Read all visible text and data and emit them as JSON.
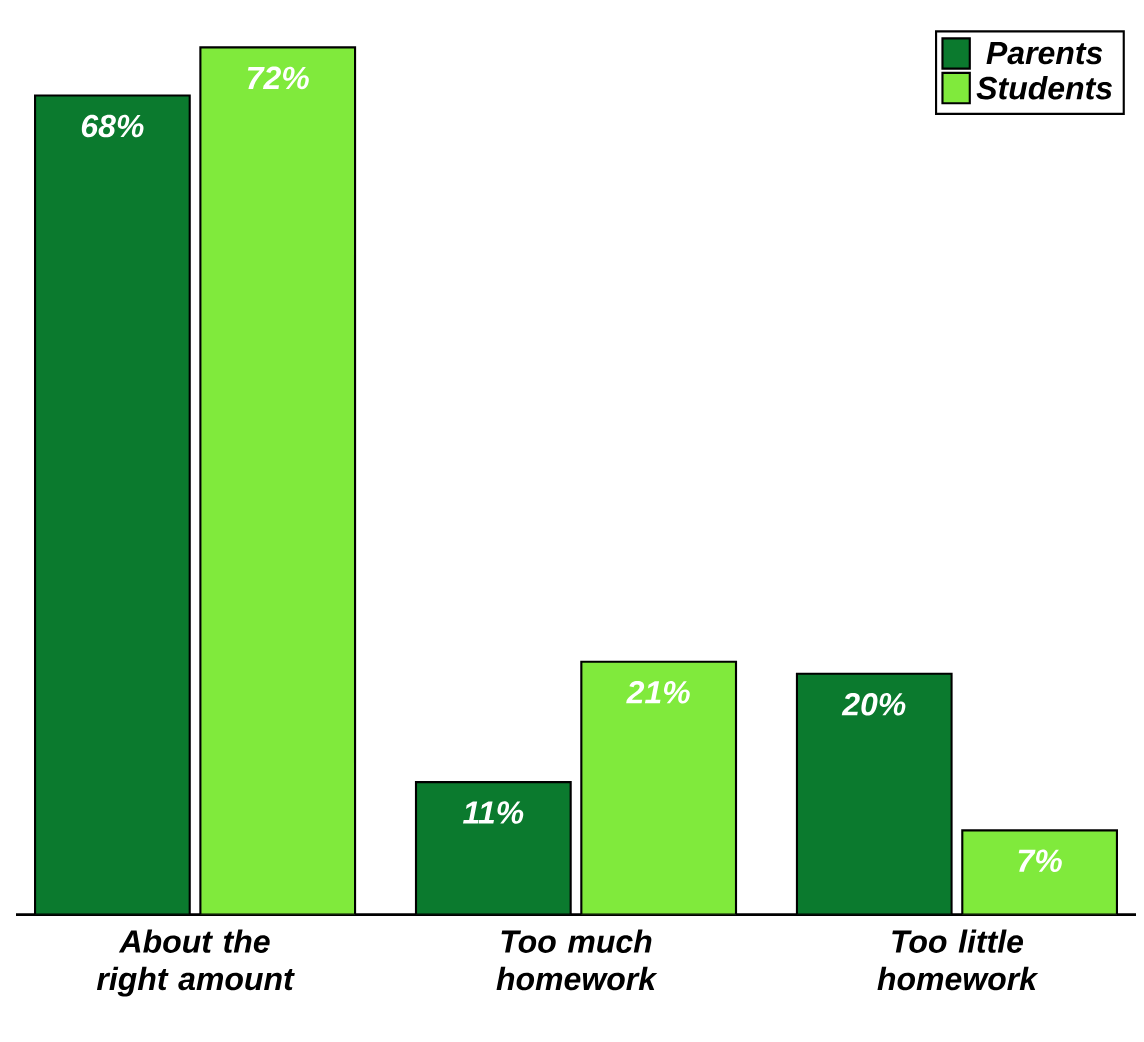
{
  "chart_data": {
    "type": "bar",
    "categories": [
      "About the right amount",
      "Too much homework",
      "Too little homework"
    ],
    "series": [
      {
        "name": "Parents",
        "color": "#0b7a2e",
        "values": [
          68,
          11,
          20
        ],
        "value_labels": [
          "68%",
          "11%",
          "20%"
        ]
      },
      {
        "name": "Students",
        "color": "#80ea3c",
        "values": [
          72,
          21,
          7
        ],
        "value_labels": [
          "72%",
          "21%",
          "7%"
        ]
      }
    ],
    "legend": "top right"
  }
}
